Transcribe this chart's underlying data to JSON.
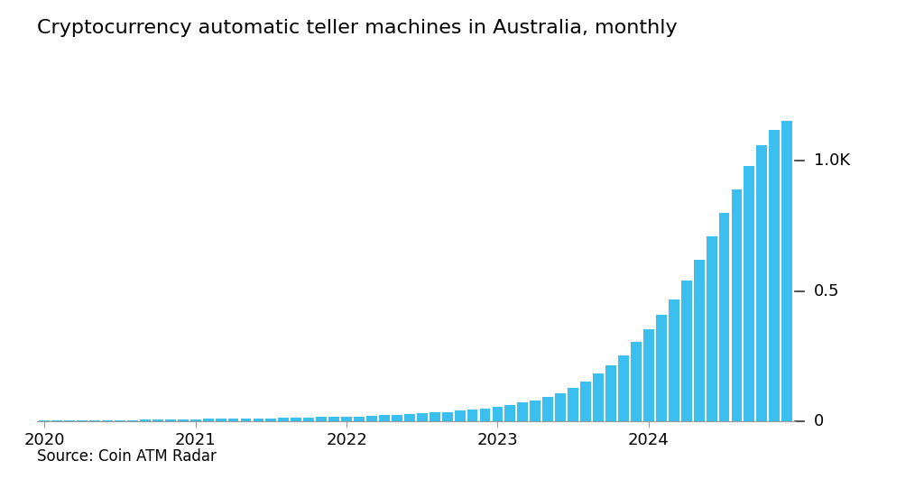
{
  "title": "Cryptocurrency automatic teller machines in Australia, monthly",
  "source": "Source: Coin ATM Radar",
  "bar_color": "#3bbfef",
  "bg_color": "#ffffff",
  "text_color": "#000000",
  "ytick_labels": [
    "0",
    "0.5",
    "1.0K"
  ],
  "ytick_values": [
    0,
    500,
    1000
  ],
  "ylim": [
    0,
    1250
  ],
  "xtick_labels": [
    "2020",
    "2021",
    "2022",
    "2023",
    "2024"
  ],
  "year_tick_positions": [
    0,
    12,
    24,
    36,
    48
  ],
  "values": [
    3,
    4,
    4,
    5,
    5,
    5,
    6,
    6,
    7,
    7,
    8,
    9,
    9,
    10,
    10,
    11,
    11,
    12,
    13,
    14,
    15,
    16,
    17,
    18,
    19,
    20,
    22,
    24,
    26,
    28,
    31,
    34,
    37,
    41,
    46,
    51,
    57,
    64,
    72,
    82,
    95,
    110,
    130,
    155,
    185,
    215,
    255,
    305,
    355,
    410,
    470,
    540,
    620,
    710,
    800,
    890,
    980,
    1060,
    1120,
    1155
  ],
  "title_fontsize": 16,
  "tick_fontsize": 13,
  "source_fontsize": 12
}
